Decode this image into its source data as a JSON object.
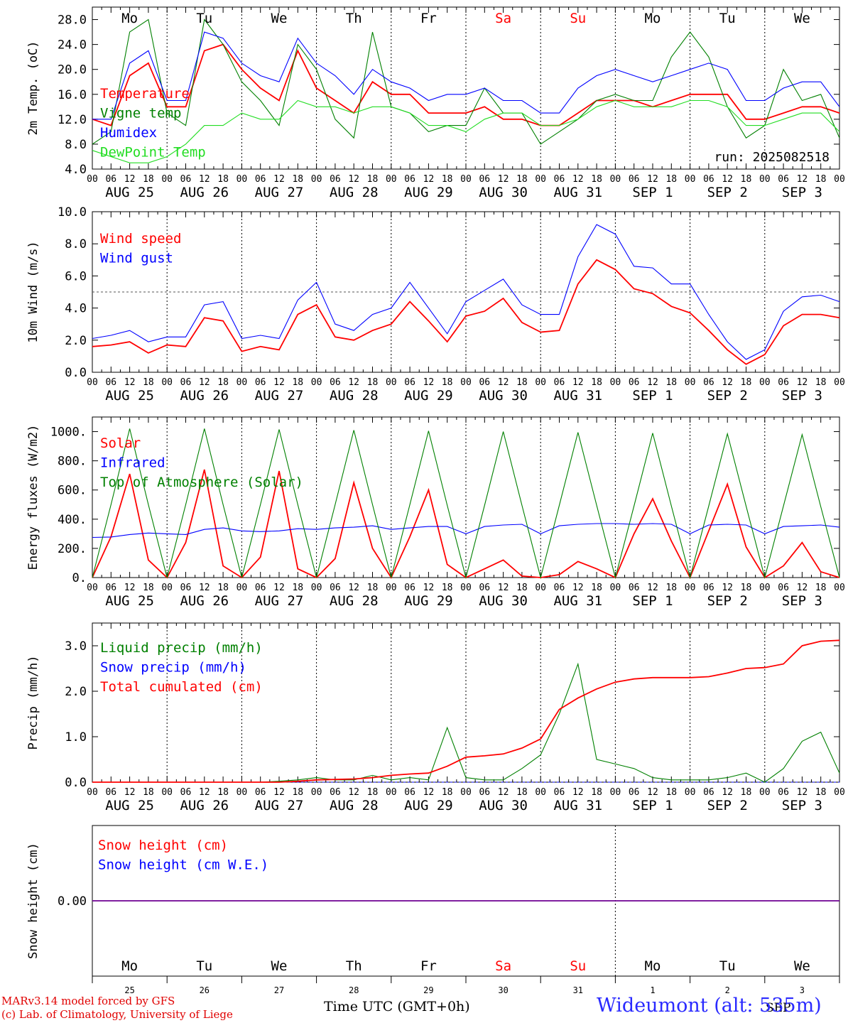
{
  "days": {
    "dow": [
      "Mo",
      "Tu",
      "We",
      "Th",
      "Fr",
      "Sa",
      "Su",
      "Mo",
      "Tu",
      "We"
    ],
    "weekend_flags": [
      false,
      false,
      false,
      false,
      false,
      true,
      true,
      false,
      false,
      false
    ],
    "dates": [
      "AUG 25",
      "AUG 26",
      "AUG 27",
      "AUG 28",
      "AUG 29",
      "AUG 30",
      "AUG 31",
      "SEP  1",
      "SEP  2",
      "SEP  3"
    ],
    "day_numbers": [
      "25",
      "26",
      "27",
      "28",
      "29",
      "30",
      "31",
      "1",
      "2",
      "3"
    ],
    "hour_ticks": [
      "00",
      "06",
      "12",
      "18"
    ],
    "last_hour": "00",
    "month_label": "SEP"
  },
  "colors": {
    "red": "#ff0000",
    "green": "#008000",
    "blue": "#0000ff",
    "lightgreen": "#22dd22",
    "weekend": "#ff0000"
  },
  "footer": {
    "model": "MARv3.14 model forced by GFS",
    "credit": "(c) Lab. of Climatology, University of Liege",
    "xlabel": "Time UTC (GMT+0h)",
    "station": "Wideumont (alt: 535m)"
  },
  "chart_data": [
    {
      "type": "line",
      "ylabel": "2m Temp. (oC)",
      "ylim": [
        4,
        30
      ],
      "yticks": [
        "4.0",
        "8.0",
        "12.0",
        "16.0",
        "20.0",
        "24.0",
        "28.0"
      ],
      "annotation": "run: 2025082518",
      "x_hours": [
        0,
        6,
        12,
        18,
        24,
        30,
        36,
        42,
        48,
        54,
        60,
        66,
        72,
        78,
        84,
        90,
        96,
        102,
        108,
        114,
        120,
        126,
        132,
        138,
        144,
        150,
        156,
        162,
        168,
        174,
        180,
        186,
        192,
        198,
        204,
        210,
        216,
        222,
        228,
        234,
        240
      ],
      "series": [
        {
          "name": "Temperature",
          "color": "red",
          "values": [
            12,
            11,
            19,
            21,
            14,
            14,
            23,
            24,
            20,
            17,
            15,
            23,
            17,
            15,
            13,
            18,
            16,
            16,
            13,
            13,
            13,
            14,
            12,
            12,
            11,
            11,
            13,
            15,
            15,
            15,
            14,
            15,
            16,
            16,
            16,
            12,
            12,
            13,
            14,
            14,
            13
          ]
        },
        {
          "name": "Vigne temp",
          "color": "green",
          "values": [
            8,
            10,
            26,
            28,
            13,
            11,
            28,
            24,
            18,
            15,
            11,
            24,
            20,
            12,
            9,
            26,
            14,
            13,
            10,
            11,
            11,
            17,
            13,
            13,
            8,
            10,
            12,
            15,
            16,
            15,
            15,
            22,
            26,
            22,
            14,
            9,
            11,
            20,
            15,
            16,
            9
          ]
        },
        {
          "name": "Humidex",
          "color": "blue",
          "values": [
            12,
            12,
            21,
            23,
            15,
            15,
            26,
            25,
            21,
            19,
            18,
            25,
            21,
            19,
            16,
            20,
            18,
            17,
            15,
            16,
            16,
            17,
            15,
            15,
            13,
            13,
            17,
            19,
            20,
            19,
            18,
            19,
            20,
            21,
            20,
            15,
            15,
            17,
            18,
            18,
            14
          ]
        },
        {
          "name": "DewPoint Temp",
          "color": "lightgreen",
          "values": [
            7,
            6,
            5,
            5,
            6,
            8,
            11,
            11,
            13,
            12,
            12,
            15,
            14,
            14,
            13,
            14,
            14,
            13,
            11,
            11,
            10,
            12,
            13,
            13,
            11,
            11,
            12,
            14,
            15,
            14,
            14,
            14,
            15,
            15,
            14,
            11,
            11,
            12,
            13,
            13,
            10
          ]
        }
      ]
    },
    {
      "type": "line",
      "ylabel": "10m Wind (m/s)",
      "ylim": [
        0,
        10
      ],
      "yticks": [
        "0.0",
        "2.0",
        "4.0",
        "6.0",
        "8.0",
        "10.0"
      ],
      "reference_line": 5,
      "x_hours": [
        0,
        6,
        12,
        18,
        24,
        30,
        36,
        42,
        48,
        54,
        60,
        66,
        72,
        78,
        84,
        90,
        96,
        102,
        108,
        114,
        120,
        126,
        132,
        138,
        144,
        150,
        156,
        162,
        168,
        174,
        180,
        186,
        192,
        198,
        204,
        210,
        216,
        222,
        228,
        234,
        240
      ],
      "series": [
        {
          "name": "Wind speed",
          "color": "red",
          "values": [
            1.6,
            1.7,
            1.9,
            1.2,
            1.7,
            1.6,
            3.4,
            3.2,
            1.3,
            1.6,
            1.4,
            3.6,
            4.2,
            2.2,
            2.0,
            2.6,
            3.0,
            4.4,
            3.2,
            1.9,
            3.5,
            3.8,
            4.6,
            3.1,
            2.5,
            2.6,
            5.5,
            7.0,
            6.4,
            5.2,
            4.9,
            4.1,
            3.7,
            2.6,
            1.4,
            0.5,
            1.1,
            2.9,
            3.6,
            3.6,
            3.4
          ]
        },
        {
          "name": "Wind gust",
          "color": "blue",
          "values": [
            2.1,
            2.3,
            2.6,
            1.9,
            2.2,
            2.2,
            4.2,
            4.4,
            2.1,
            2.3,
            2.1,
            4.5,
            5.6,
            3.0,
            2.6,
            3.6,
            4.0,
            5.6,
            4.0,
            2.4,
            4.4,
            5.1,
            5.8,
            4.2,
            3.6,
            3.6,
            7.2,
            9.2,
            8.6,
            6.6,
            6.5,
            5.5,
            5.5,
            3.6,
            1.9,
            0.8,
            1.4,
            3.8,
            4.7,
            4.8,
            4.4
          ]
        }
      ]
    },
    {
      "type": "line",
      "ylabel": "Energy fluxes (W/m2)",
      "ylim": [
        0,
        1100
      ],
      "yticks": [
        "0.",
        "200.",
        "400.",
        "600.",
        "800.",
        "1000."
      ],
      "x_hours": [
        0,
        6,
        12,
        18,
        24,
        30,
        36,
        42,
        48,
        54,
        60,
        66,
        72,
        78,
        84,
        90,
        96,
        102,
        108,
        114,
        120,
        126,
        132,
        138,
        144,
        150,
        156,
        162,
        168,
        174,
        180,
        186,
        192,
        198,
        204,
        210,
        216,
        222,
        228,
        234,
        240
      ],
      "series": [
        {
          "name": "Solar",
          "color": "red",
          "values": [
            0,
            280,
            710,
            120,
            0,
            240,
            740,
            80,
            0,
            140,
            730,
            60,
            0,
            130,
            650,
            200,
            0,
            280,
            600,
            90,
            0,
            60,
            120,
            10,
            0,
            20,
            110,
            60,
            0,
            300,
            540,
            250,
            0,
            320,
            640,
            210,
            0,
            80,
            240,
            40,
            0
          ]
        },
        {
          "name": "Infrared",
          "color": "blue",
          "values": [
            275,
            278,
            295,
            305,
            300,
            295,
            330,
            340,
            320,
            315,
            320,
            335,
            330,
            340,
            345,
            355,
            330,
            340,
            350,
            350,
            300,
            350,
            360,
            365,
            300,
            355,
            365,
            370,
            370,
            365,
            370,
            365,
            300,
            360,
            365,
            360,
            300,
            350,
            355,
            360,
            345
          ]
        },
        {
          "name": "Top of Atmosphere (Solar)",
          "color": "green",
          "values": [
            0,
            500,
            1020,
            500,
            0,
            500,
            1020,
            500,
            0,
            500,
            1015,
            500,
            0,
            500,
            1010,
            500,
            0,
            500,
            1005,
            495,
            0,
            495,
            1000,
            495,
            0,
            495,
            995,
            495,
            0,
            490,
            990,
            490,
            0,
            490,
            985,
            490,
            0,
            490,
            980,
            485,
            0
          ]
        }
      ]
    },
    {
      "type": "line",
      "ylabel": "Precip (mm/h)",
      "ylim": [
        0,
        3.5
      ],
      "yticks": [
        "0.0",
        "1.0",
        "2.0",
        "3.0"
      ],
      "x_hours": [
        0,
        6,
        12,
        18,
        24,
        30,
        36,
        42,
        48,
        54,
        60,
        66,
        72,
        78,
        84,
        90,
        96,
        102,
        108,
        114,
        120,
        126,
        132,
        138,
        144,
        150,
        156,
        162,
        168,
        174,
        180,
        186,
        192,
        198,
        204,
        210,
        216,
        222,
        228,
        234,
        240
      ],
      "series": [
        {
          "name": "Liquid precip (mm/h)",
          "color": "green",
          "values": [
            0,
            0,
            0,
            0,
            0,
            0,
            0,
            0,
            0,
            0,
            0.02,
            0.05,
            0.1,
            0.05,
            0.05,
            0.15,
            0.05,
            0.1,
            0.05,
            1.2,
            0.1,
            0.05,
            0.05,
            0.3,
            0.6,
            1.5,
            2.6,
            0.5,
            0.4,
            0.3,
            0.1,
            0.05,
            0.05,
            0.05,
            0.1,
            0.2,
            0,
            0.3,
            0.9,
            1.1,
            0.2
          ]
        },
        {
          "name": "Snow precip (mm/h)",
          "color": "blue",
          "values": [
            0,
            0,
            0,
            0,
            0,
            0,
            0,
            0,
            0,
            0,
            0,
            0,
            0,
            0,
            0,
            0,
            0,
            0,
            0,
            0,
            0,
            0,
            0,
            0,
            0,
            0,
            0,
            0,
            0,
            0,
            0,
            0,
            0,
            0,
            0,
            0,
            0,
            0,
            0,
            0,
            0
          ]
        },
        {
          "name": "Total cumulated (cm)",
          "color": "red",
          "values": [
            0,
            0,
            0,
            0,
            0,
            0,
            0,
            0,
            0,
            0,
            0,
            0.02,
            0.05,
            0.06,
            0.07,
            0.1,
            0.15,
            0.18,
            0.2,
            0.35,
            0.55,
            0.58,
            0.62,
            0.75,
            0.95,
            1.6,
            1.85,
            2.05,
            2.2,
            2.27,
            2.3,
            2.3,
            2.3,
            2.32,
            2.4,
            2.5,
            2.52,
            2.6,
            3.0,
            3.1,
            3.12
          ]
        }
      ]
    },
    {
      "type": "line",
      "ylabel": "Snow height (cm)",
      "ylim": [
        -1,
        1
      ],
      "yticks": [
        "0.00"
      ],
      "x_hours": [
        0,
        240
      ],
      "series": [
        {
          "name": "Snow height (cm)",
          "color": "red",
          "values": [
            0,
            0
          ]
        },
        {
          "name": "Snow height (cm W.E.)",
          "color": "blue",
          "values": [
            0,
            0
          ]
        }
      ]
    }
  ]
}
